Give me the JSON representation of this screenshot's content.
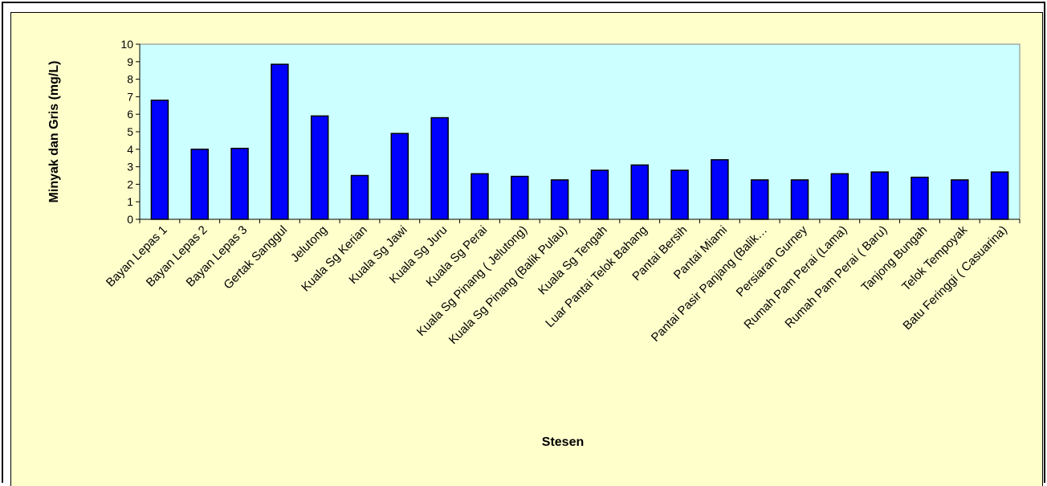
{
  "chart_data": {
    "type": "bar",
    "title": "",
    "xlabel": "Stesen",
    "ylabel": "Minyak dan Gris (mg/L)",
    "ylim": [
      0,
      10
    ],
    "yticks": [
      0,
      1,
      2,
      3,
      4,
      5,
      6,
      7,
      8,
      9,
      10
    ],
    "grid": false,
    "legend": "none",
    "categories": [
      "Bayan Lepas 1",
      "Bayan Lepas 2",
      "Bayan Lepas 3",
      "Gertak Sanggul",
      "Jelutong",
      "Kuala Sg  Kerian",
      "Kuala Sg Jawi",
      "Kuala Sg Juru",
      "Kuala Sg Perai",
      "Kuala Sg Pinang ( Jelutong)",
      "Kuala Sg Pinang (Balik Pulau)",
      "Kuala Sg Tengah",
      "Luar Pantai Telok Bahang",
      "Pantai Bersih",
      "Pantai Miami",
      "Pantai Pasir Panjang (Balik…",
      "Persiaran Gurney",
      "Rumah Pam Perai (Lama)",
      "Rumah Pam Perai ( Baru)",
      "Tanjong Bungah",
      "Telok Tempoyak",
      "Batu Feringgi ( Casuarina)"
    ],
    "values": [
      6.8,
      4.0,
      4.05,
      8.85,
      5.9,
      2.5,
      4.9,
      5.8,
      2.6,
      2.45,
      2.25,
      2.8,
      3.1,
      2.8,
      3.4,
      2.25,
      2.25,
      2.6,
      2.7,
      2.4,
      2.25,
      2.7
    ],
    "colors": {
      "bar": "#0000ff",
      "bar_outline": "#000000",
      "plot_background": "#ccffff",
      "chart_background": "#ffffcc"
    }
  }
}
